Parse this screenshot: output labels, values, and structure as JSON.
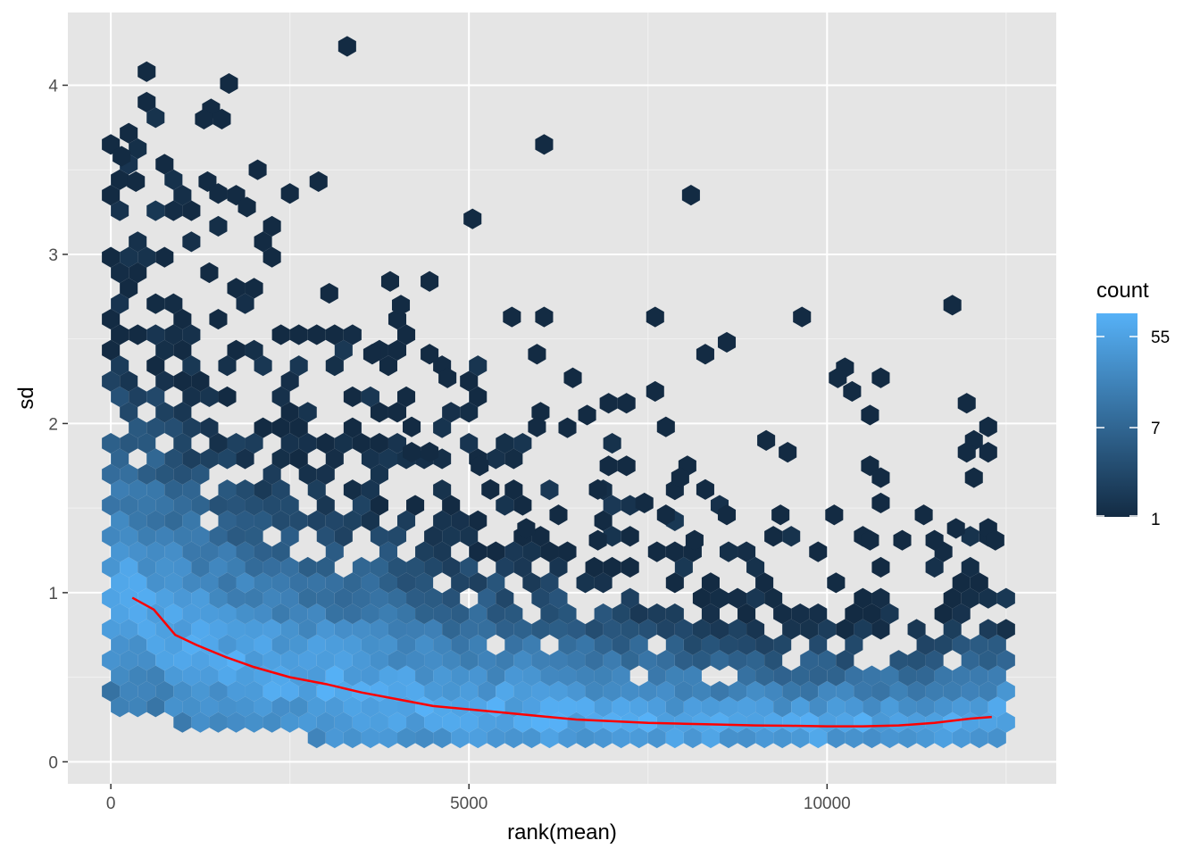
{
  "chart_data": {
    "type": "hexbin",
    "xlabel": "rank(mean)",
    "ylabel": "sd",
    "xlim": [
      -600,
      13200
    ],
    "ylim": [
      -0.13,
      4.43
    ],
    "xticks": [
      0,
      5000,
      10000
    ],
    "xtick_labels": [
      "0",
      "5000",
      "10000"
    ],
    "yticks": [
      0,
      1,
      2,
      3,
      4
    ],
    "ytick_labels": [
      "0",
      "1",
      "2",
      "3",
      "4"
    ],
    "grid": true,
    "panel_background": "#e5e5e5",
    "grid_color": "#ffffff",
    "hexbin": {
      "x_range": [
        0,
        12500
      ],
      "y_range": [
        0.05,
        4.25
      ],
      "bins_x": 50
    },
    "trend": {
      "name": "",
      "color": "#ff0000",
      "x": [
        300,
        600,
        900,
        1200,
        1600,
        2000,
        2500,
        3000,
        3500,
        4000,
        4500,
        5000,
        5500,
        6000,
        6500,
        7000,
        7500,
        8000,
        8500,
        9000,
        9500,
        10000,
        10500,
        11000,
        11500,
        12000,
        12300
      ],
      "y": [
        0.97,
        0.9,
        0.75,
        0.69,
        0.62,
        0.56,
        0.5,
        0.46,
        0.41,
        0.37,
        0.33,
        0.31,
        0.29,
        0.27,
        0.25,
        0.24,
        0.23,
        0.225,
        0.22,
        0.215,
        0.213,
        0.21,
        0.21,
        0.215,
        0.23,
        0.255,
        0.265
      ]
    },
    "outlier_hexes": [
      {
        "x": 0,
        "y": 3.65
      },
      {
        "x": 150,
        "y": 3.58
      },
      {
        "x": 500,
        "y": 4.08
      },
      {
        "x": 1400,
        "y": 3.86
      },
      {
        "x": 1650,
        "y": 4.01
      },
      {
        "x": 1300,
        "y": 3.8
      },
      {
        "x": 1550,
        "y": 3.8
      },
      {
        "x": 3300,
        "y": 4.23
      },
      {
        "x": 6050,
        "y": 3.65
      },
      {
        "x": 8100,
        "y": 3.35
      },
      {
        "x": 5050,
        "y": 3.21
      },
      {
        "x": 1350,
        "y": 3.43
      },
      {
        "x": 1500,
        "y": 3.36
      },
      {
        "x": 2050,
        "y": 3.5
      },
      {
        "x": 2500,
        "y": 3.36
      },
      {
        "x": 2900,
        "y": 3.43
      },
      {
        "x": 1900,
        "y": 3.28
      },
      {
        "x": 350,
        "y": 3.43
      },
      {
        "x": 3050,
        "y": 2.77
      },
      {
        "x": 3900,
        "y": 2.84
      },
      {
        "x": 4450,
        "y": 2.84
      },
      {
        "x": 4050,
        "y": 2.7
      },
      {
        "x": 5600,
        "y": 2.63
      },
      {
        "x": 6050,
        "y": 2.63
      },
      {
        "x": 7600,
        "y": 2.63
      },
      {
        "x": 9650,
        "y": 2.63
      },
      {
        "x": 11750,
        "y": 2.7
      },
      {
        "x": 8600,
        "y": 2.48
      },
      {
        "x": 8300,
        "y": 2.41
      },
      {
        "x": 5950,
        "y": 2.41
      },
      {
        "x": 3650,
        "y": 2.41
      },
      {
        "x": 4450,
        "y": 2.41
      },
      {
        "x": 4700,
        "y": 2.27
      },
      {
        "x": 6450,
        "y": 2.27
      },
      {
        "x": 7600,
        "y": 2.19
      },
      {
        "x": 6950,
        "y": 2.12
      },
      {
        "x": 7200,
        "y": 2.12
      },
      {
        "x": 6650,
        "y": 2.05
      },
      {
        "x": 5950,
        "y": 1.98
      },
      {
        "x": 7750,
        "y": 1.98
      },
      {
        "x": 9150,
        "y": 1.9
      },
      {
        "x": 9450,
        "y": 1.83
      },
      {
        "x": 10250,
        "y": 2.33
      },
      {
        "x": 10150,
        "y": 2.27
      },
      {
        "x": 10350,
        "y": 2.19
      },
      {
        "x": 10750,
        "y": 2.27
      },
      {
        "x": 10600,
        "y": 2.05
      },
      {
        "x": 11950,
        "y": 2.12
      },
      {
        "x": 12250,
        "y": 1.98
      },
      {
        "x": 12050,
        "y": 1.9
      },
      {
        "x": 11950,
        "y": 1.83
      },
      {
        "x": 12250,
        "y": 1.83
      },
      {
        "x": 12050,
        "y": 1.68
      },
      {
        "x": 10600,
        "y": 1.75
      },
      {
        "x": 10750,
        "y": 1.68
      },
      {
        "x": 10750,
        "y": 1.53
      },
      {
        "x": 10100,
        "y": 1.46
      },
      {
        "x": 11350,
        "y": 1.46
      },
      {
        "x": 10600,
        "y": 1.31
      },
      {
        "x": 11050,
        "y": 1.31
      },
      {
        "x": 11500,
        "y": 1.31
      },
      {
        "x": 11800,
        "y": 1.38
      },
      {
        "x": 12250,
        "y": 1.38
      },
      {
        "x": 12350,
        "y": 1.31
      },
      {
        "x": 8050,
        "y": 1.75
      },
      {
        "x": 7950,
        "y": 1.68
      },
      {
        "x": 8300,
        "y": 1.61
      },
      {
        "x": 8600,
        "y": 1.46
      },
      {
        "x": 9350,
        "y": 1.46
      },
      {
        "x": 7200,
        "y": 1.75
      },
      {
        "x": 6950,
        "y": 1.75
      },
      {
        "x": 6800,
        "y": 1.61
      },
      {
        "x": 7450,
        "y": 1.53
      },
      {
        "x": 7750,
        "y": 1.46
      },
      {
        "x": 8150,
        "y": 1.31
      },
      {
        "x": 6800,
        "y": 1.31
      },
      {
        "x": 6250,
        "y": 1.46
      },
      {
        "x": 5800,
        "y": 1.38
      },
      {
        "x": 5150,
        "y": 1.75
      },
      {
        "x": 5300,
        "y": 1.61
      },
      {
        "x": 4200,
        "y": 1.98
      },
      {
        "x": 4200,
        "y": 1.83
      },
      {
        "x": 4450,
        "y": 1.83
      }
    ]
  },
  "legend": {
    "title": "count",
    "labels": [
      "55",
      "7",
      "1"
    ],
    "low_color": "#132B43",
    "high_color": "#56B1F7"
  }
}
